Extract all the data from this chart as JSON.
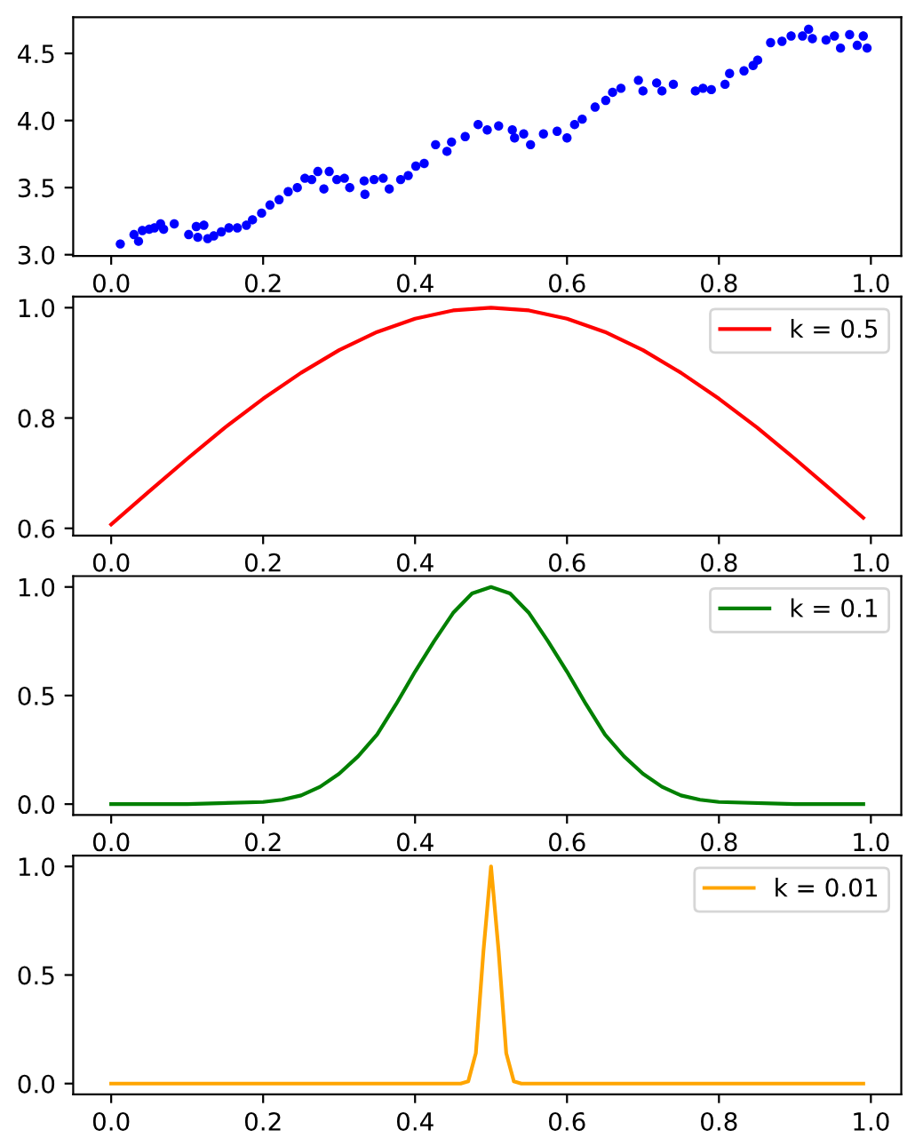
{
  "chart_data": [
    {
      "type": "scatter",
      "marker": "circle",
      "legend": false,
      "grid": false,
      "xlim": [
        -0.05,
        1.04
      ],
      "ylim": [
        2.99,
        4.77
      ],
      "xticks": [
        {
          "value": 0,
          "label": "0.0"
        },
        {
          "value": 0.2,
          "label": "0.2"
        },
        {
          "value": 0.4,
          "label": "0.4"
        },
        {
          "value": 0.6,
          "label": "0.6"
        },
        {
          "value": 0.8,
          "label": "0.8"
        },
        {
          "value": 1,
          "label": "1.0"
        }
      ],
      "yticks": [
        {
          "value": 3,
          "label": "3.0"
        },
        {
          "value": 3.5,
          "label": "3.5"
        },
        {
          "value": 4,
          "label": "4.0"
        },
        {
          "value": 4.5,
          "label": "4.5"
        }
      ],
      "series": [
        {
          "color": "#0000ff",
          "x": [
            0.012,
            0.03,
            0.036,
            0.041,
            0.05,
            0.057,
            0.065,
            0.069,
            0.083,
            0.102,
            0.112,
            0.114,
            0.122,
            0.127,
            0.135,
            0.145,
            0.155,
            0.166,
            0.178,
            0.186,
            0.198,
            0.209,
            0.221,
            0.233,
            0.245,
            0.255,
            0.264,
            0.272,
            0.28,
            0.287,
            0.297,
            0.307,
            0.314,
            0.333,
            0.334,
            0.346,
            0.358,
            0.366,
            0.381,
            0.391,
            0.401,
            0.412,
            0.427,
            0.442,
            0.448,
            0.466,
            0.483,
            0.495,
            0.51,
            0.528,
            0.531,
            0.543,
            0.552,
            0.569,
            0.587,
            0.6,
            0.61,
            0.62,
            0.637,
            0.651,
            0.66,
            0.671,
            0.694,
            0.7,
            0.718,
            0.725,
            0.74,
            0.769,
            0.779,
            0.79,
            0.808,
            0.814,
            0.833,
            0.845,
            0.851,
            0.868,
            0.883,
            0.895,
            0.91,
            0.918,
            0.923,
            0.941,
            0.952,
            0.96,
            0.972,
            0.982,
            0.99,
            0.995
          ],
          "values": [
            3.08,
            3.15,
            3.1,
            3.18,
            3.19,
            3.2,
            3.23,
            3.19,
            3.23,
            3.15,
            3.21,
            3.13,
            3.22,
            3.12,
            3.14,
            3.17,
            3.2,
            3.2,
            3.22,
            3.26,
            3.31,
            3.37,
            3.41,
            3.47,
            3.5,
            3.57,
            3.56,
            3.62,
            3.49,
            3.62,
            3.56,
            3.57,
            3.5,
            3.55,
            3.45,
            3.56,
            3.57,
            3.49,
            3.56,
            3.59,
            3.66,
            3.68,
            3.82,
            3.77,
            3.84,
            3.88,
            3.97,
            3.93,
            3.96,
            3.93,
            3.87,
            3.9,
            3.82,
            3.9,
            3.92,
            3.87,
            3.97,
            4.01,
            4.1,
            4.15,
            4.21,
            4.24,
            4.3,
            4.22,
            4.28,
            4.22,
            4.27,
            4.22,
            4.24,
            4.23,
            4.27,
            4.35,
            4.37,
            4.41,
            4.45,
            4.58,
            4.59,
            4.63,
            4.63,
            4.68,
            4.61,
            4.6,
            4.63,
            4.54,
            4.64,
            4.56,
            4.63,
            4.54
          ]
        }
      ]
    },
    {
      "type": "line",
      "legend": "top right",
      "grid": false,
      "xlim": [
        -0.05,
        1.04
      ],
      "ylim": [
        0.587,
        1.02
      ],
      "xticks": [
        {
          "value": 0,
          "label": "0.0"
        },
        {
          "value": 0.2,
          "label": "0.2"
        },
        {
          "value": 0.4,
          "label": "0.4"
        },
        {
          "value": 0.6,
          "label": "0.6"
        },
        {
          "value": 0.8,
          "label": "0.8"
        },
        {
          "value": 1,
          "label": "1.0"
        }
      ],
      "yticks": [
        {
          "value": 0.6,
          "label": "0.6"
        },
        {
          "value": 0.8,
          "label": "0.8"
        },
        {
          "value": 1,
          "label": "1.0"
        }
      ],
      "series": [
        {
          "name": "k = 0.5",
          "color": "#ff0000",
          "x": [
            0,
            0.05,
            0.1,
            0.15,
            0.2,
            0.25,
            0.3,
            0.35,
            0.4,
            0.45,
            0.5,
            0.55,
            0.6,
            0.65,
            0.7,
            0.75,
            0.8,
            0.85,
            0.9,
            0.95,
            0.99
          ],
          "values": [
            0.607,
            0.667,
            0.726,
            0.783,
            0.835,
            0.882,
            0.923,
            0.956,
            0.98,
            0.995,
            1.0,
            0.995,
            0.98,
            0.956,
            0.923,
            0.882,
            0.835,
            0.783,
            0.726,
            0.667,
            0.619
          ]
        }
      ]
    },
    {
      "type": "line",
      "legend": "top right",
      "grid": false,
      "xlim": [
        -0.05,
        1.04
      ],
      "ylim": [
        -0.05,
        1.05
      ],
      "xticks": [
        {
          "value": 0,
          "label": "0.0"
        },
        {
          "value": 0.2,
          "label": "0.2"
        },
        {
          "value": 0.4,
          "label": "0.4"
        },
        {
          "value": 0.6,
          "label": "0.6"
        },
        {
          "value": 0.8,
          "label": "0.8"
        },
        {
          "value": 1,
          "label": "1.0"
        }
      ],
      "yticks": [
        {
          "value": 0,
          "label": "0.0"
        },
        {
          "value": 0.5,
          "label": "0.5"
        },
        {
          "value": 1,
          "label": "1.0"
        }
      ],
      "series": [
        {
          "name": "k = 0.1",
          "color": "#008000",
          "x": [
            0,
            0.1,
            0.2,
            0.225,
            0.25,
            0.275,
            0.3,
            0.325,
            0.35,
            0.375,
            0.4,
            0.425,
            0.45,
            0.475,
            0.5,
            0.525,
            0.55,
            0.575,
            0.6,
            0.625,
            0.65,
            0.675,
            0.7,
            0.725,
            0.75,
            0.775,
            0.8,
            0.9,
            0.99
          ],
          "values": [
            0,
            0,
            0.01,
            0.02,
            0.04,
            0.08,
            0.14,
            0.22,
            0.32,
            0.46,
            0.61,
            0.75,
            0.88,
            0.97,
            1.0,
            0.97,
            0.88,
            0.75,
            0.61,
            0.46,
            0.32,
            0.22,
            0.14,
            0.08,
            0.04,
            0.02,
            0.01,
            0,
            0
          ]
        }
      ]
    },
    {
      "type": "line",
      "legend": "top right",
      "grid": false,
      "xlim": [
        -0.05,
        1.04
      ],
      "ylim": [
        -0.05,
        1.05
      ],
      "xticks": [
        {
          "value": 0,
          "label": "0.0"
        },
        {
          "value": 0.2,
          "label": "0.2"
        },
        {
          "value": 0.4,
          "label": "0.4"
        },
        {
          "value": 0.6,
          "label": "0.6"
        },
        {
          "value": 0.8,
          "label": "0.8"
        },
        {
          "value": 1,
          "label": "1.0"
        }
      ],
      "yticks": [
        {
          "value": 0,
          "label": "0.0"
        },
        {
          "value": 0.5,
          "label": "0.5"
        },
        {
          "value": 1,
          "label": "1.0"
        }
      ],
      "series": [
        {
          "name": "k = 0.01",
          "color": "#ffa500",
          "x": [
            0,
            0.46,
            0.47,
            0.48,
            0.49,
            0.5,
            0.51,
            0.52,
            0.53,
            0.54,
            0.99
          ],
          "values": [
            0,
            0,
            0.01,
            0.14,
            0.61,
            1.0,
            0.61,
            0.14,
            0.01,
            0,
            0
          ]
        }
      ]
    }
  ]
}
